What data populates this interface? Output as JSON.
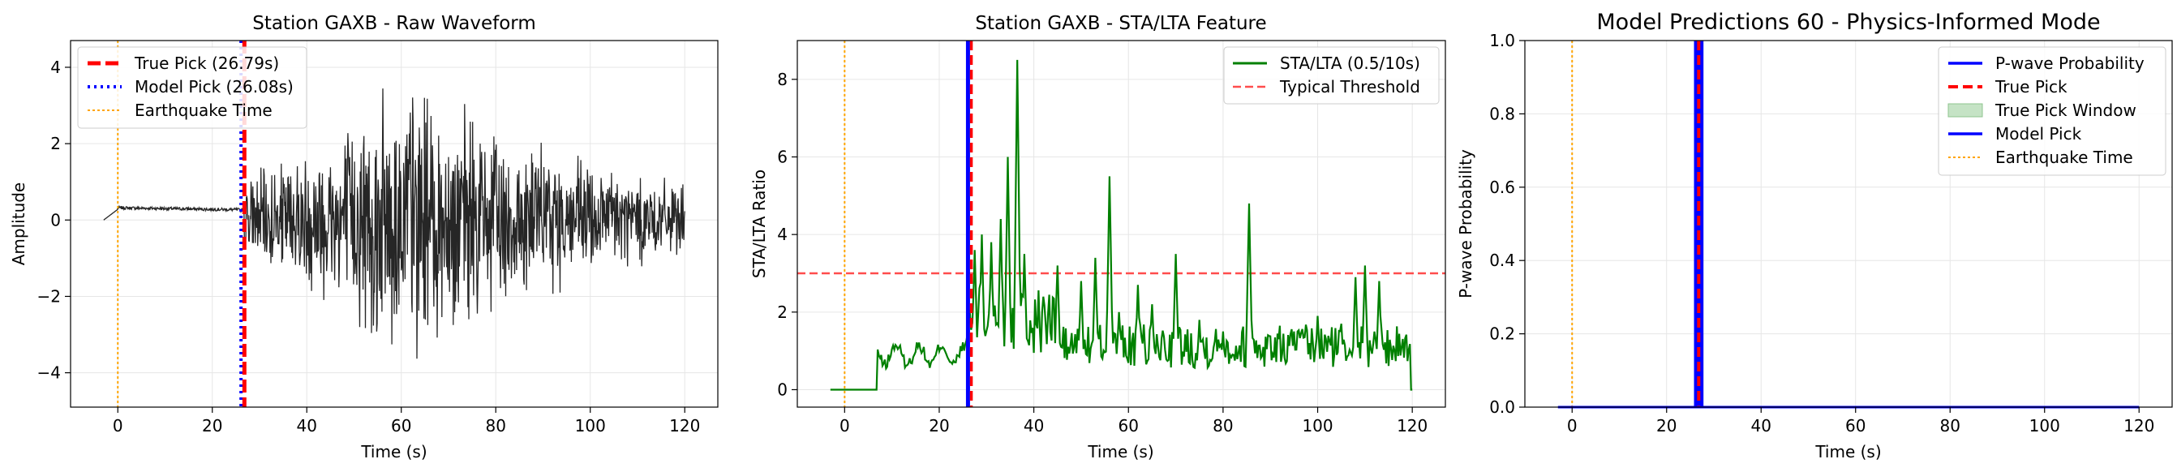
{
  "panels": [
    {
      "title": "Station GAXB - Raw Waveform",
      "xlabel": "Time (s)",
      "ylabel": "Amplitude",
      "legend": {
        "true_pick": "True Pick (26.79s)",
        "model_pick": "Model Pick (26.08s)",
        "eq_time": "Earthquake Time"
      }
    },
    {
      "title": "Station GAXB - STA/LTA Feature",
      "xlabel": "Time (s)",
      "ylabel": "STA/LTA Ratio",
      "legend": {
        "stalta": "STA/LTA (0.5/10s)",
        "threshold": "Typical Threshold"
      }
    },
    {
      "title": "Model Predictions 60 - Physics-Informed Mode",
      "xlabel": "Time (s)",
      "ylabel": "P-wave Probability",
      "legend": {
        "prob": "P-wave Probability",
        "true_pick": "True Pick",
        "window": "True Pick Window",
        "model_pick": "Model Pick",
        "eq_time": "Earthquake Time"
      }
    }
  ],
  "colors": {
    "waveform": "#262626",
    "true_pick": "#ff0000",
    "model_pick": "#0000ff",
    "eq_time": "#ffa500",
    "stalta": "#008000",
    "threshold": "#ff4d4d",
    "window_fill": "#c5e3c5",
    "grid": "#e6e6e6"
  },
  "chart_data": [
    {
      "type": "line",
      "xlim": [
        -10,
        127
      ],
      "ylim": [
        -4.9,
        4.7
      ],
      "xticks": [
        0,
        20,
        40,
        60,
        80,
        100,
        120
      ],
      "yticks": [
        -4,
        -2,
        0,
        2,
        4
      ],
      "true_pick": 26.79,
      "model_pick": 26.08,
      "eq_time": 0,
      "waveform": {
        "t_start": -3,
        "t_pick": 26.79,
        "t_end": 120,
        "pre_event_level": 0.2,
        "envelope_x": [
          27,
          35,
          45,
          55,
          62,
          70,
          80,
          90,
          100,
          110,
          120
        ],
        "envelope_y": [
          1.2,
          1.8,
          2.6,
          3.6,
          4.3,
          3.4,
          2.8,
          2.2,
          1.8,
          1.4,
          1.0
        ]
      },
      "grid": true,
      "legend_position": "upper-left"
    },
    {
      "type": "line",
      "xlim": [
        -10,
        127
      ],
      "ylim": [
        -0.45,
        9.0
      ],
      "xticks": [
        0,
        20,
        40,
        60,
        80,
        100,
        120
      ],
      "yticks": [
        0,
        2,
        4,
        6,
        8
      ],
      "threshold": 3,
      "true_pick": 26.79,
      "model_pick": 26.08,
      "eq_time": 0,
      "stalta_peaks": {
        "x": [
          7,
          27.5,
          29,
          31,
          33,
          34.5,
          36.5,
          38,
          41,
          45,
          50,
          53,
          56,
          58,
          62,
          65,
          70,
          75,
          80,
          85.5,
          90,
          95,
          100,
          105,
          108,
          110,
          113,
          118,
          120
        ],
        "y": [
          1.2,
          3.6,
          4.0,
          3.8,
          4.4,
          6.0,
          8.5,
          3.5,
          2.3,
          3.2,
          2.8,
          3.4,
          5.5,
          2.0,
          2.7,
          2.2,
          3.5,
          1.8,
          1.5,
          4.8,
          1.0,
          1.5,
          1.9,
          1.7,
          2.9,
          3.2,
          2.8,
          1.2,
          0.0
        ]
      },
      "grid": true,
      "legend_position": "upper-right"
    },
    {
      "type": "line",
      "xlim": [
        -10,
        127
      ],
      "ylim": [
        0,
        1
      ],
      "xticks": [
        0,
        20,
        40,
        60,
        80,
        100,
        120
      ],
      "yticks": [
        0.0,
        0.2,
        0.4,
        0.6,
        0.8,
        1.0
      ],
      "probability": {
        "x": [
          -3,
          120
        ],
        "y": [
          0.0,
          0.0
        ]
      },
      "true_pick": 26.79,
      "true_pick_window": [
        25.8,
        27.8
      ],
      "model_pick": 26.08,
      "eq_time": 0,
      "grid": true,
      "legend_position": "upper-right"
    }
  ]
}
